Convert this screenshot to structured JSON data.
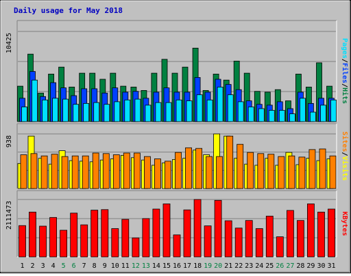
{
  "chart_data": [
    {
      "type": "bar",
      "title": "Daily usage for May 2018",
      "categories": [
        "1",
        "2",
        "3",
        "4",
        "5",
        "6",
        "7",
        "8",
        "9",
        "10",
        "11",
        "12",
        "13",
        "14",
        "15",
        "16",
        "17",
        "18",
        "19",
        "20",
        "21",
        "22",
        "23",
        "24",
        "25",
        "26",
        "27",
        "28",
        "29",
        "30",
        "31"
      ],
      "weekend_categories": [
        "5",
        "6",
        "12",
        "13",
        "19",
        "20",
        "26",
        "27"
      ],
      "y_tick_label": "10425",
      "ylim": [
        0,
        10425
      ],
      "side_label_parts": [
        "Pages",
        "Files",
        "Hits"
      ],
      "separator": "/",
      "series": [
        {
          "name": "Hits",
          "color": "#008040",
          "values": [
            4100,
            7800,
            3300,
            5500,
            6300,
            4000,
            5600,
            5600,
            4900,
            5600,
            4100,
            4000,
            3600,
            5600,
            7200,
            5600,
            6300,
            8500,
            3600,
            5500,
            4800,
            7000,
            5600,
            3500,
            3400,
            3700,
            2400,
            5500,
            4000,
            6800,
            4100
          ]
        },
        {
          "name": "Files",
          "color": "#0040ff",
          "values": [
            2700,
            5800,
            2900,
            4500,
            3900,
            3000,
            3800,
            3800,
            3300,
            3900,
            3400,
            3500,
            2700,
            3400,
            3900,
            3400,
            3400,
            5100,
            3400,
            4900,
            4300,
            3700,
            2400,
            2000,
            1900,
            2300,
            1500,
            3400,
            2100,
            2700,
            2700
          ]
        },
        {
          "name": "Pages",
          "color": "#00e0ff",
          "values": [
            1700,
            4800,
            2500,
            2700,
            2600,
            2000,
            2100,
            2200,
            2000,
            2300,
            2500,
            2600,
            1900,
            2200,
            2200,
            2500,
            2400,
            3100,
            2500,
            4000,
            3100,
            2300,
            1700,
            1500,
            1300,
            1300,
            900,
            2700,
            1100,
            1900,
            2500
          ]
        }
      ]
    },
    {
      "type": "bar",
      "y_tick_label": "938",
      "ylim": [
        0,
        938
      ],
      "side_label_parts": [
        "Sites",
        "Visits"
      ],
      "separator": "/",
      "series": [
        {
          "name": "Visits",
          "color": "#ffff00",
          "values": [
            430,
            900,
            520,
            420,
            650,
            480,
            470,
            460,
            490,
            510,
            570,
            530,
            490,
            400,
            440,
            500,
            520,
            660,
            580,
            938,
            900,
            520,
            420,
            400,
            520,
            400,
            620,
            410,
            520,
            480,
            510
          ]
        },
        {
          "name": "Sites",
          "color": "#ff8000",
          "values": [
            580,
            600,
            560,
            590,
            550,
            560,
            560,
            610,
            600,
            580,
            610,
            610,
            550,
            510,
            470,
            620,
            700,
            690,
            550,
            550,
            900,
            760,
            620,
            600,
            590,
            550,
            560,
            540,
            670,
            680,
            560
          ]
        }
      ]
    },
    {
      "type": "bar",
      "y_tick_label": "2111473",
      "ylim": [
        0,
        2111473
      ],
      "side_label_parts": [
        "KBytes"
      ],
      "series": [
        {
          "name": "KBytes",
          "color": "#ff0000",
          "values": [
            1150000,
            1650000,
            1130000,
            1450000,
            980000,
            1610000,
            1180000,
            1720000,
            1740000,
            1040000,
            1380000,
            700000,
            1410000,
            1760000,
            1950000,
            810000,
            1730000,
            2111473,
            1140000,
            2080000,
            1330000,
            1060000,
            1340000,
            1040000,
            1500000,
            740000,
            1710000,
            1340000,
            1950000,
            1650000,
            1760000
          ]
        }
      ]
    }
  ]
}
